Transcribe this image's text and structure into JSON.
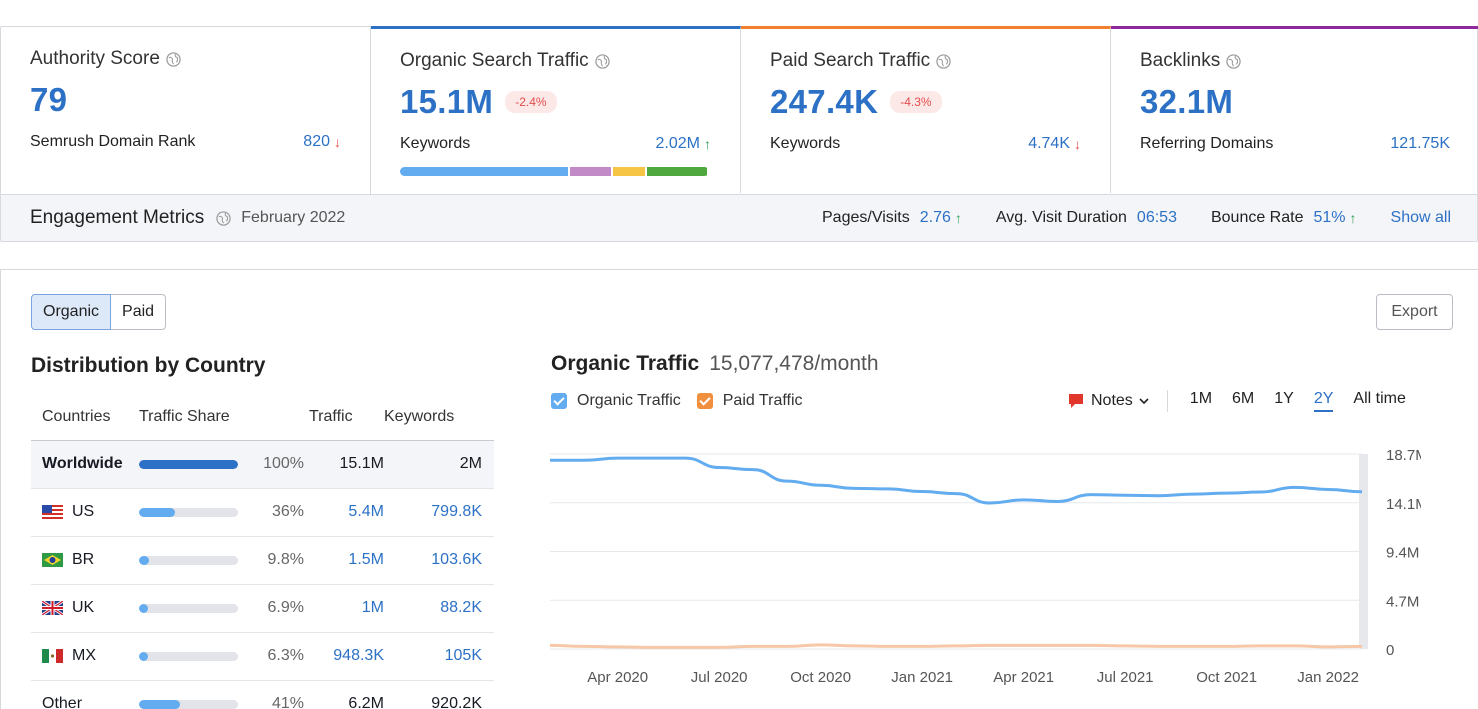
{
  "cards": [
    {
      "title": "Authority Score",
      "value": "79",
      "badge": null,
      "sub_label": "Semrush Domain Rank",
      "sub_value": "820",
      "trend": "down"
    },
    {
      "title": "Organic Search Traffic",
      "value": "15.1M",
      "badge": "-2.4%",
      "sub_label": "Keywords",
      "sub_value": "2.02M",
      "trend": "up"
    },
    {
      "title": "Paid Search Traffic",
      "value": "247.4K",
      "badge": "-4.3%",
      "sub_label": "Keywords",
      "sub_value": "4.74K",
      "trend": "down"
    },
    {
      "title": "Backlinks",
      "value": "32.1M",
      "badge": null,
      "sub_label": "Referring Domains",
      "sub_value": "121.75K",
      "trend": null
    }
  ],
  "keyword_bar": {
    "segments": [
      {
        "share": 0.55,
        "color": "#63acef"
      },
      {
        "share": 0.14,
        "color": "#c38ac8"
      },
      {
        "share": 0.11,
        "color": "#f6c545"
      },
      {
        "share": 0.2,
        "color": "#4fa83d"
      }
    ]
  },
  "engagement": {
    "title": "Engagement Metrics",
    "date": "February 2022",
    "pages_label": "Pages/Visits",
    "pages_value": "2.76",
    "duration_label": "Avg. Visit Duration",
    "duration_value": "06:53",
    "bounce_label": "Bounce Rate",
    "bounce_value": "51%",
    "show_all": "Show all"
  },
  "segment": {
    "organic": "Organic",
    "paid": "Paid"
  },
  "export_label": "Export",
  "distribution": {
    "title": "Distribution by Country",
    "headers": {
      "countries": "Countries",
      "share": "Traffic Share",
      "traffic": "Traffic",
      "keywords": "Keywords"
    },
    "rows": [
      {
        "country": "Worldwide",
        "flag": null,
        "share": 1.0,
        "pct": "100%",
        "traffic": "15.1M",
        "keywords": "2M"
      },
      {
        "country": "US",
        "flag": "us",
        "share": 0.36,
        "pct": "36%",
        "traffic": "5.4M",
        "keywords": "799.8K"
      },
      {
        "country": "BR",
        "flag": "br",
        "share": 0.098,
        "pct": "9.8%",
        "traffic": "1.5M",
        "keywords": "103.6K"
      },
      {
        "country": "UK",
        "flag": "uk",
        "share": 0.069,
        "pct": "6.9%",
        "traffic": "1M",
        "keywords": "88.2K"
      },
      {
        "country": "MX",
        "flag": "mx",
        "share": 0.063,
        "pct": "6.3%",
        "traffic": "948.3K",
        "keywords": "105K"
      },
      {
        "country": "Other",
        "flag": null,
        "share": 0.41,
        "pct": "41%",
        "traffic": "6.2M",
        "keywords": "920.2K"
      }
    ]
  },
  "traffic_chart": {
    "title": "Organic Traffic",
    "subtitle": "15,077,478/month",
    "legend_organic": "Organic Traffic",
    "legend_paid": "Paid Traffic",
    "notes_label": "Notes",
    "ranges": [
      "1M",
      "6M",
      "1Y",
      "2Y",
      "All time"
    ],
    "selected_range": "2Y"
  },
  "colors": {
    "accent": "#2c71c5",
    "organic": "#63acef",
    "paid": "#f6c8a8",
    "paid_checkbox": "#f0903e"
  },
  "chart_data": {
    "type": "line",
    "title": "Organic Traffic",
    "x": [
      "Feb 2020",
      "Mar 2020",
      "Apr 2020",
      "May 2020",
      "Jun 2020",
      "Jul 2020",
      "Aug 2020",
      "Sep 2020",
      "Oct 2020",
      "Nov 2020",
      "Dec 2020",
      "Jan 2021",
      "Feb 2021",
      "Mar 2021",
      "Apr 2021",
      "May 2021",
      "Jun 2021",
      "Jul 2021",
      "Aug 2021",
      "Sep 2021",
      "Oct 2021",
      "Nov 2021",
      "Dec 2021",
      "Jan 2022",
      "Feb 2022"
    ],
    "x_tick_labels": [
      "Apr 2020",
      "Jul 2020",
      "Oct 2020",
      "Jan 2021",
      "Apr 2021",
      "Jul 2021",
      "Oct 2021",
      "Jan 2022"
    ],
    "y_tick_labels": [
      "18.7M",
      "14.1M",
      "9.4M",
      "4.7M",
      "0"
    ],
    "ylim": [
      0,
      18700000
    ],
    "series": [
      {
        "name": "Organic Traffic",
        "values": [
          18100000,
          18100000,
          18300000,
          18300000,
          18300000,
          17400000,
          17200000,
          16100000,
          15700000,
          15400000,
          15350000,
          15100000,
          14900000,
          14000000,
          14300000,
          14150000,
          14800000,
          14750000,
          14700000,
          14850000,
          14950000,
          15050000,
          15500000,
          15300000,
          15077478
        ]
      },
      {
        "name": "Paid Traffic",
        "values": [
          350000,
          250000,
          200000,
          150000,
          150000,
          150000,
          250000,
          250000,
          400000,
          300000,
          250000,
          250000,
          300000,
          350000,
          350000,
          350000,
          350000,
          300000,
          250000,
          250000,
          250000,
          300000,
          300000,
          200000,
          247400
        ]
      }
    ]
  }
}
